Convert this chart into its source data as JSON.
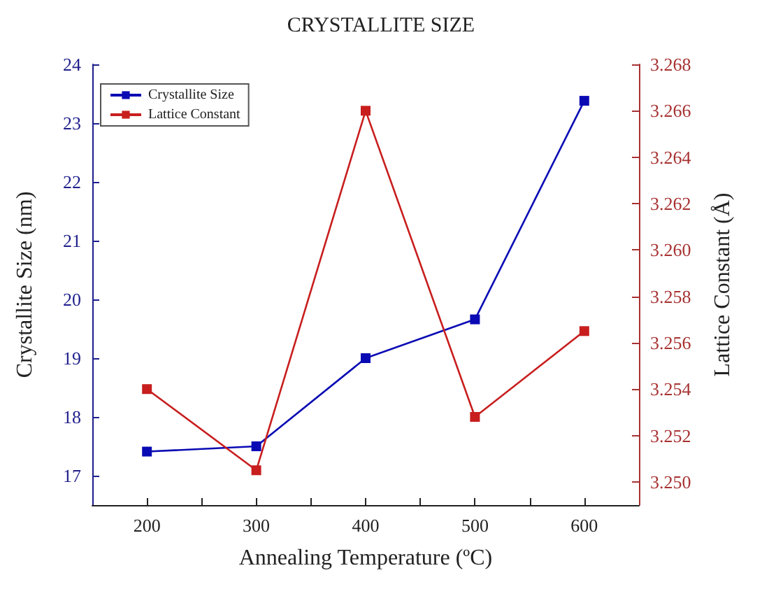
{
  "chart_data": {
    "type": "line",
    "title": "CRYSTALLITE SIZE",
    "xlabel": "Annealing Temperature (ºC)",
    "ylabel": "Crystallite Size (nm)",
    "y2label": "Lattice Constant (Å)",
    "x": [
      200,
      300,
      400,
      500,
      600
    ],
    "series": [
      {
        "name": "Crystallite Size",
        "color": "#0a0ab4",
        "values": [
          17.41,
          17.5,
          19.0,
          19.66,
          23.38
        ]
      },
      {
        "name": "Lattice Constant",
        "color": "#c81e1e",
        "axis": "y2",
        "values": [
          3.254,
          3.2505,
          3.266,
          3.2528,
          3.2565
        ]
      }
    ],
    "xlim": [
      150,
      650
    ],
    "xticks": [
      200,
      {
        "value": 250,
        "label": null
      },
      300,
      {
        "value": 350,
        "label": null
      },
      400,
      {
        "value": 450,
        "label": null
      },
      500,
      {
        "value": 550,
        "label": null
      },
      600
    ],
    "ylim": [
      16.5,
      24
    ],
    "yticks": [
      17,
      18,
      19,
      20,
      21,
      22,
      23,
      24
    ],
    "y2lim": [
      3.249,
      3.268
    ],
    "y2ticks": [
      {
        "value": 3.25,
        "label": "3.250"
      },
      {
        "value": 3.252,
        "label": "3.252"
      },
      {
        "value": 3.254,
        "label": "3.254"
      },
      {
        "value": 3.256,
        "label": "3.256"
      },
      {
        "value": 3.258,
        "label": "3.258"
      },
      {
        "value": 3.26,
        "label": "3.260"
      },
      {
        "value": 3.262,
        "label": "3.262"
      },
      {
        "value": 3.264,
        "label": "3.264"
      },
      {
        "value": 3.266,
        "label": "3.266"
      },
      {
        "value": 3.268,
        "label": "3.268"
      }
    ],
    "legend": "top left",
    "marker": "square",
    "line_style": "solid",
    "grid": false
  }
}
